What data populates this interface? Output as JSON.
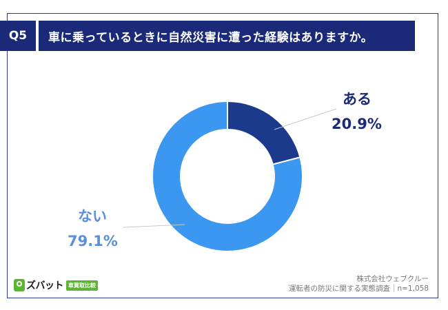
{
  "header": {
    "badge": "Q5",
    "title": "車に乗っているときに自然災害に遭った経験はありますか。"
  },
  "chart_data": {
    "type": "pie",
    "donut": true,
    "title": "車に乗っているときに自然災害に遭った経験はありますか。",
    "categories": [
      "ある",
      "ない"
    ],
    "values": [
      20.9,
      79.1
    ],
    "value_labels": [
      "20.9%",
      "79.1%"
    ],
    "colors": [
      "#1b3a8c",
      "#3b97f0"
    ]
  },
  "footer": {
    "company": "株式会社ウェブクルー",
    "survey": "運転者の防災に関する実態調査｜n=1,058",
    "logo_text": "ズバット",
    "logo_tag": "車買取比較"
  }
}
